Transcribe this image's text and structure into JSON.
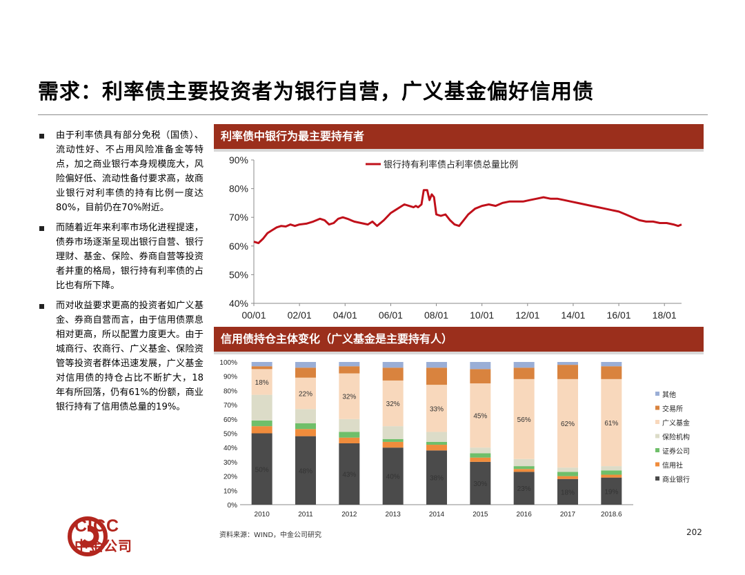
{
  "slide": {
    "title": "需求：利率债主要投资者为银行自营，广义基金偏好信用债",
    "bullets": [
      "由于利率债具有部分免税（国债）、流动性好、不占用风险准备金等特点，加之商业银行本身规模庞大，风险偏好低、流动性备付要求高，故商业银行对利率债的持有比例一度达80%，目前仍在70%附近。",
      "而随着近年来利率市场化进程提速，债券市场逐渐呈现出银行自营、银行理财、基金、保险、券商自营等投资者并重的格局，银行持有利率债的占比也有所下降。",
      "而对收益要求更高的投资者如广义基金、券商自营而言，由于信用债票息相对更高，所以配置力度更大。由于城商行、农商行、广义基金、保险资管等投资者群体迅速发展，广义基金对信用债的持仓占比不断扩大，18年有所回落，仍有61%的份额，商业银行持有了信用债总量的19%。"
    ],
    "panel1_title": "利率债中银行为最主要持有者",
    "panel2_title": "信用债持仓主体变化（广义基金是主要持有人）",
    "source": "资料来源：WIND，中金公司研究",
    "page_number": "202",
    "logo": {
      "en": "CICC",
      "cn": "中金公司"
    },
    "colors": {
      "brand_red": "#9b2f1c",
      "line_red": "#c0101a"
    }
  },
  "chart_data": [
    {
      "type": "line",
      "title": "",
      "legend": [
        "银行持有利率债占利率债总量比例"
      ],
      "legend_position": "top-center",
      "x_ticks": [
        "00/01",
        "02/01",
        "04/01",
        "06/01",
        "08/01",
        "10/01",
        "12/01",
        "14/01",
        "16/01",
        "18/01"
      ],
      "y_ticks": [
        "40%",
        "50%",
        "60%",
        "70%",
        "80%",
        "90%"
      ],
      "ylim": [
        40,
        90
      ],
      "xlim": [
        2000.0,
        2018.75
      ],
      "series": [
        {
          "name": "银行持有利率债占利率债总量比例",
          "color": "#c0101a",
          "points": [
            [
              2000.0,
              61.5
            ],
            [
              2000.2,
              61.0
            ],
            [
              2000.4,
              62.5
            ],
            [
              2000.6,
              64.5
            ],
            [
              2000.8,
              65.5
            ],
            [
              2001.0,
              66.5
            ],
            [
              2001.2,
              67.0
            ],
            [
              2001.4,
              66.8
            ],
            [
              2001.6,
              67.5
            ],
            [
              2001.8,
              67.0
            ],
            [
              2002.0,
              67.5
            ],
            [
              2002.3,
              67.8
            ],
            [
              2002.6,
              68.5
            ],
            [
              2002.9,
              69.5
            ],
            [
              2003.1,
              69.0
            ],
            [
              2003.3,
              67.5
            ],
            [
              2003.5,
              68.0
            ],
            [
              2003.7,
              69.5
            ],
            [
              2003.9,
              70.0
            ],
            [
              2004.1,
              69.5
            ],
            [
              2004.4,
              68.5
            ],
            [
              2004.7,
              68.0
            ],
            [
              2005.0,
              67.5
            ],
            [
              2005.2,
              68.5
            ],
            [
              2005.4,
              67.0
            ],
            [
              2005.7,
              69.0
            ],
            [
              2006.0,
              71.5
            ],
            [
              2006.2,
              72.5
            ],
            [
              2006.4,
              73.5
            ],
            [
              2006.6,
              74.5
            ],
            [
              2006.8,
              74.0
            ],
            [
              2007.0,
              73.5
            ],
            [
              2007.1,
              74.0
            ],
            [
              2007.2,
              73.5
            ],
            [
              2007.35,
              74.5
            ],
            [
              2007.45,
              79.5
            ],
            [
              2007.6,
              79.5
            ],
            [
              2007.7,
              76.0
            ],
            [
              2007.8,
              78.0
            ],
            [
              2007.9,
              77.0
            ],
            [
              2008.0,
              71.0
            ],
            [
              2008.2,
              70.5
            ],
            [
              2008.4,
              71.0
            ],
            [
              2008.6,
              69.0
            ],
            [
              2008.8,
              67.5
            ],
            [
              2009.0,
              67.0
            ],
            [
              2009.2,
              69.0
            ],
            [
              2009.4,
              71.0
            ],
            [
              2009.7,
              73.0
            ],
            [
              2010.0,
              74.0
            ],
            [
              2010.3,
              74.5
            ],
            [
              2010.6,
              74.0
            ],
            [
              2010.9,
              75.0
            ],
            [
              2011.2,
              75.5
            ],
            [
              2011.5,
              75.5
            ],
            [
              2011.8,
              75.5
            ],
            [
              2012.1,
              76.0
            ],
            [
              2012.4,
              76.5
            ],
            [
              2012.7,
              77.0
            ],
            [
              2013.0,
              76.5
            ],
            [
              2013.3,
              76.5
            ],
            [
              2013.6,
              76.0
            ],
            [
              2013.9,
              75.5
            ],
            [
              2014.2,
              75.0
            ],
            [
              2014.5,
              74.5
            ],
            [
              2014.8,
              74.0
            ],
            [
              2015.1,
              73.5
            ],
            [
              2015.4,
              73.0
            ],
            [
              2015.7,
              72.5
            ],
            [
              2016.0,
              72.0
            ],
            [
              2016.3,
              71.0
            ],
            [
              2016.6,
              70.0
            ],
            [
              2016.9,
              69.0
            ],
            [
              2017.2,
              68.5
            ],
            [
              2017.5,
              68.5
            ],
            [
              2017.8,
              68.0
            ],
            [
              2018.1,
              68.0
            ],
            [
              2018.4,
              67.5
            ],
            [
              2018.6,
              67.0
            ],
            [
              2018.75,
              67.5
            ]
          ]
        }
      ]
    },
    {
      "type": "bar",
      "stacked": true,
      "title": "",
      "categories": [
        "2010",
        "2011",
        "2012",
        "2013",
        "2014",
        "2015",
        "2016",
        "2017",
        "2018.6"
      ],
      "y_ticks": [
        "0%",
        "10%",
        "20%",
        "30%",
        "40%",
        "50%",
        "60%",
        "70%",
        "80%",
        "90%",
        "100%"
      ],
      "ylim": [
        0,
        100
      ],
      "legend_position": "right",
      "legend_order": [
        "其他",
        "交易所",
        "广义基金",
        "保险机构",
        "证券公司",
        "信用社",
        "商业银行"
      ],
      "series": [
        {
          "name": "商业银行",
          "color": "#4b4b4b",
          "values": [
            50,
            48,
            43,
            40,
            38,
            30,
            23,
            18,
            19
          ],
          "labels": [
            "50%",
            "48%",
            "43%",
            "40%",
            "38%",
            "30%",
            "23%",
            "18%",
            "19%"
          ]
        },
        {
          "name": "信用社",
          "color": "#f08c3c",
          "values": [
            5,
            5,
            4,
            4,
            4,
            3,
            2,
            2,
            2
          ]
        },
        {
          "name": "证券公司",
          "color": "#6fbf6a",
          "values": [
            4,
            4,
            4,
            2,
            2,
            3,
            2,
            3,
            3
          ]
        },
        {
          "name": "保险机构",
          "color": "#dcdcc8",
          "values": [
            18,
            10,
            9,
            9,
            7,
            4,
            5,
            3,
            3
          ]
        },
        {
          "name": "广义基金",
          "color": "#f8d8bc",
          "values": [
            18,
            22,
            32,
            32,
            33,
            45,
            56,
            62,
            61
          ],
          "labels": [
            "18%",
            "22%",
            "32%",
            "32%",
            "33%",
            "45%",
            "56%",
            "62%",
            "61%"
          ]
        },
        {
          "name": "交易所",
          "color": "#d9833e",
          "values": [
            2,
            7,
            5,
            9,
            12,
            10,
            8,
            10,
            9
          ]
        },
        {
          "name": "其他",
          "color": "#9aaed6",
          "values": [
            3,
            4,
            3,
            4,
            4,
            5,
            4,
            2,
            3
          ]
        }
      ]
    }
  ]
}
